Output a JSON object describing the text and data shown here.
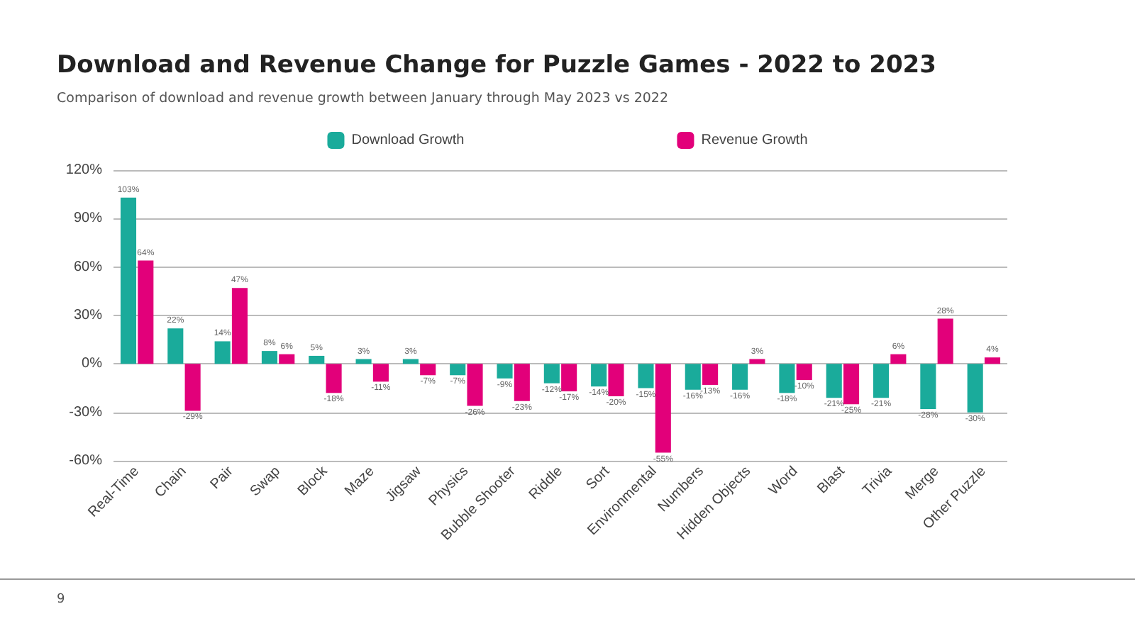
{
  "chart_data": {
    "type": "bar",
    "title": "Download and Revenue Change for Puzzle Games - 2022 to 2023",
    "subtitle": "Comparison of download and revenue growth between January through May 2023 vs 2022",
    "categories": [
      "Real-Time",
      "Chain",
      "Pair",
      "Swap",
      "Block",
      "Maze",
      "Jigsaw",
      "Physics",
      "Bubble Shooter",
      "Riddle",
      "Sort",
      "Environmental",
      "Numbers",
      "Hidden Objects",
      "Word",
      "Blast",
      "Trivia",
      "Merge",
      "Other Puzzle"
    ],
    "series": [
      {
        "name": "Download Growth",
        "color": "#1aab9b",
        "values": [
          103,
          22,
          14,
          8,
          5,
          3,
          3,
          -7,
          -9,
          -12,
          -14,
          -15,
          -16,
          -16,
          -18,
          -21,
          -21,
          -28,
          -30
        ],
        "value_labels": [
          "103%",
          "22%",
          "14%",
          "8%",
          "5%",
          "3%",
          "3%",
          "-7%",
          "-9%",
          "-12%",
          "-14%",
          "-15%",
          "-16%",
          "-16%",
          "-18%",
          "-21%",
          "-21%",
          "-28%",
          "-30%"
        ]
      },
      {
        "name": "Revenue Growth",
        "color": "#e2007a",
        "values": [
          64,
          -29,
          47,
          6,
          -18,
          -11,
          -7,
          -26,
          -23,
          -17,
          -20,
          -55,
          -13,
          3,
          -10,
          -25,
          6,
          28,
          4
        ],
        "value_labels": [
          "64%",
          "-29%",
          "47%",
          "6%",
          "-18%",
          "-11%",
          "-7%",
          "-26%",
          "-23%",
          "-17%",
          "-20%",
          "-55%",
          "-13%",
          "3%",
          "-10%",
          "-25%",
          "6%",
          "28%",
          "4%"
        ]
      }
    ],
    "ylim": [
      -60,
      120
    ],
    "yticks": [
      {
        "value": -60,
        "label": "-60%"
      },
      {
        "value": -30,
        "label": "-30%"
      },
      {
        "value": 0,
        "label": "0%"
      },
      {
        "value": 30,
        "label": "30%"
      },
      {
        "value": 60,
        "label": "60%"
      },
      {
        "value": 90,
        "label": "90%"
      },
      {
        "value": 120,
        "label": "120%"
      }
    ],
    "grid": "y",
    "legend": "top",
    "annotations": [
      "9"
    ]
  }
}
